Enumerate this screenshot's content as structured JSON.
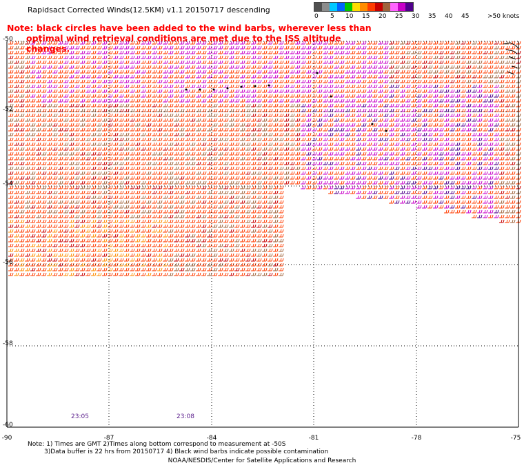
{
  "title": "Rapidsact Corrected Winds(12.5KM) v1.1 20150717 descending",
  "note": [
    "Note: black circles have been added to the wind barbs, wherever less than",
    "optimal wind retrieval conditions are met due to the ISS altitude changes."
  ],
  "legend": {
    "labels": [
      "0",
      "5",
      "10",
      "15",
      "20",
      "25",
      "30",
      "35",
      "40",
      "45",
      ">50 knots"
    ],
    "colors": [
      "#505050",
      "#8c8c8c",
      "#00c8ff",
      "#0064ff",
      "#00c800",
      "#ffdc00",
      "#ff8c00",
      "#ff3c00",
      "#c80000",
      "#a0643c",
      "#ff64ff",
      "#c800c8",
      "#50008c"
    ]
  },
  "axes": {
    "x_labels": [
      "-90",
      "-87",
      "-84",
      "-81",
      "-78",
      "-75"
    ],
    "y_labels": [
      "-50",
      "-52",
      "-54",
      "-56",
      "-58",
      "-60"
    ]
  },
  "times": [
    "23:05",
    "23:08"
  ],
  "footer": {
    "line1": "Note: 1) Times are GMT 2)Times along bottom correspond to measurement at -50S",
    "line2": "3)Data buffer is 22 hrs from 20150717 4) Black wind barbs indicate possible contamination",
    "line3": "NOAA/NESDIS/Center for Satellite Applications and Research"
  }
}
